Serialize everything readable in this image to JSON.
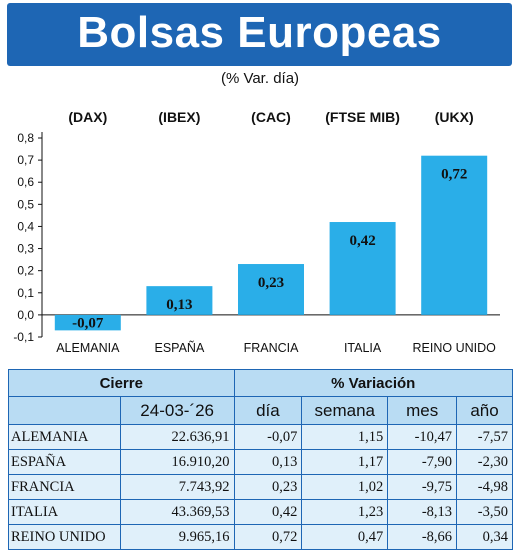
{
  "header": {
    "title": "Bolsas Europeas",
    "subtitle": "(% Var. día)"
  },
  "colors": {
    "banner": "#1e66b4",
    "bar": "#2aaee8",
    "table_header": "#b9dcf3",
    "table_body": "#e0f0fa",
    "border": "#1e66b4"
  },
  "chart_data": {
    "type": "bar",
    "categories": [
      "ALEMANIA",
      "ESPAÑA",
      "FRANCIA",
      "ITALIA",
      "REINO UNIDO"
    ],
    "index_labels": [
      "(DAX)",
      "(IBEX)",
      "(CAC)",
      "(FTSE MIB)",
      "(UKX)"
    ],
    "values": [
      -0.07,
      0.13,
      0.23,
      0.42,
      0.72
    ],
    "value_labels": [
      "-0,07",
      "0,13",
      "0,23",
      "0,42",
      "0,72"
    ],
    "ylim": [
      -0.1,
      0.8
    ],
    "yticks": [
      -0.1,
      0.0,
      0.1,
      0.2,
      0.3,
      0.4,
      0.5,
      0.6,
      0.7,
      0.8
    ],
    "ytick_labels": [
      "-0,1",
      "0,0",
      "0,1",
      "0,2",
      "0,3",
      "0,4",
      "0,5",
      "0,6",
      "0,7",
      "0,8"
    ],
    "grid": false
  },
  "table": {
    "group_headers": [
      "Cierre",
      "% Variación"
    ],
    "columns": [
      "24-03-´26",
      "día",
      "semana",
      "mes",
      "año"
    ],
    "rows": [
      {
        "country": "ALEMANIA",
        "cierre": "22.636,91",
        "dia": "-0,07",
        "semana": "1,15",
        "mes": "-10,47",
        "anio": "-7,57"
      },
      {
        "country": "ESPAÑA",
        "cierre": "16.910,20",
        "dia": "0,13",
        "semana": "1,17",
        "mes": "-7,90",
        "anio": "-2,30"
      },
      {
        "country": "FRANCIA",
        "cierre": "7.743,92",
        "dia": "0,23",
        "semana": "1,02",
        "mes": "-9,75",
        "anio": "-4,98"
      },
      {
        "country": "ITALIA",
        "cierre": "43.369,53",
        "dia": "0,42",
        "semana": "1,23",
        "mes": "-8,13",
        "anio": "-3,50"
      },
      {
        "country": "REINO UNIDO",
        "cierre": "9.965,16",
        "dia": "0,72",
        "semana": "0,47",
        "mes": "-8,66",
        "anio": "0,34"
      }
    ]
  }
}
